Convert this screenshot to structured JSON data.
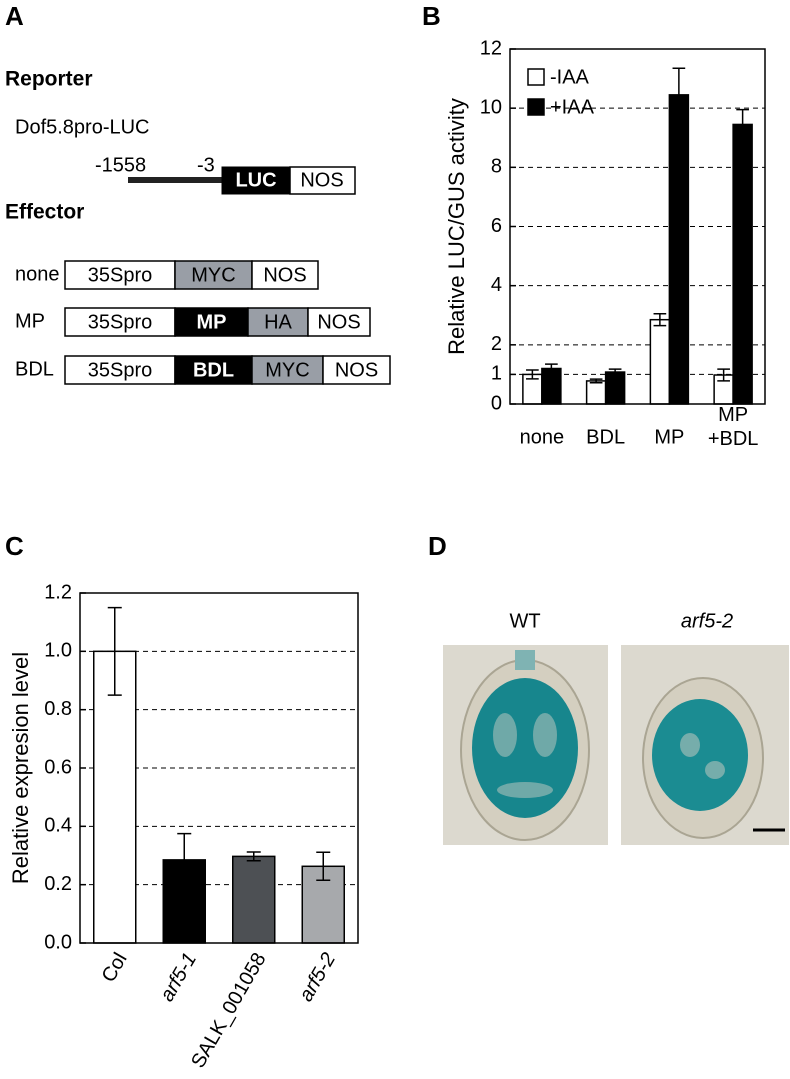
{
  "panel_labels": [
    "A",
    "B",
    "C",
    "D"
  ],
  "diagram": {
    "reporter_heading": "Reporter",
    "construct": "Dof5.8pro-LUC",
    "positions": [
      "-1558",
      "-3"
    ],
    "reporter_parts": [
      "LUC",
      "NOS"
    ],
    "effector_heading": "Effector",
    "effectors": [
      {
        "name": "none",
        "parts": [
          "35Spro",
          "MYC",
          "NOS"
        ]
      },
      {
        "name": "MP",
        "parts": [
          "35Spro",
          "MP",
          "HA",
          "NOS"
        ]
      },
      {
        "name": "BDL",
        "parts": [
          "35Spro",
          "BDL",
          "MYC",
          "NOS"
        ]
      }
    ]
  },
  "chart_data": [
    {
      "type": "bar",
      "y_label": "Relative LUC/GUS activity",
      "categories": [
        "none",
        "BDL",
        "MP",
        [
          "MP",
          "+BDL"
        ]
      ],
      "series": [
        {
          "name": "-IAA",
          "color": "#ffffff",
          "values": [
            1.0,
            0.78,
            2.85,
            0.98
          ],
          "errors": [
            0.15,
            0.06,
            0.2,
            0.2
          ]
        },
        {
          "name": "+IAA",
          "color": "#000000",
          "values": [
            1.2,
            1.08,
            10.45,
            9.45
          ],
          "errors": [
            0.15,
            0.1,
            0.9,
            0.5
          ]
        }
      ],
      "ylim": [
        0,
        12
      ],
      "yticks": [
        0,
        1,
        2,
        4,
        6,
        8,
        10,
        12
      ],
      "grid": true,
      "legend": "upper left"
    },
    {
      "type": "bar",
      "y_label": "Relative expresion level",
      "categories": [
        "Col",
        "arf5-1",
        "SALK_001058",
        "arf5-2"
      ],
      "values": [
        1.0,
        0.285,
        0.297,
        0.263
      ],
      "errors": [
        0.15,
        0.09,
        0.015,
        0.048
      ],
      "colors": [
        "#ffffff",
        "#000000",
        "#4d5054",
        "#a7a9ac"
      ],
      "ylim": [
        0,
        1.2
      ],
      "yticks": [
        {
          "value": 0,
          "label": "0.0"
        },
        0.2,
        0.4,
        0.6,
        0.8,
        {
          "value": 1,
          "label": "1.0"
        },
        1.2
      ],
      "grid": true
    }
  ],
  "micrographs": {
    "labels": [
      "WT",
      "arf5-2"
    ]
  }
}
